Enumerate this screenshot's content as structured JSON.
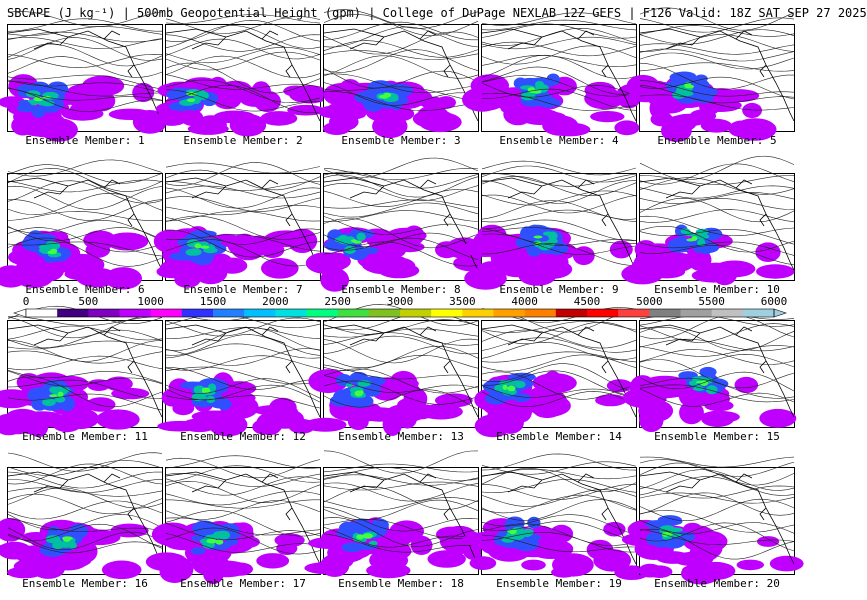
{
  "title": "SBCAPE (J kg⁻¹) | 500mb Geopotential Height (gpm) | College of DuPage NEXLAB 12Z GEFS | F126 Valid: 18Z SAT SEP 27 2025",
  "member_label_prefix": "Ensemble Member: ",
  "members": [
    {
      "label": "Ensemble Member: 1"
    },
    {
      "label": "Ensemble Member: 2"
    },
    {
      "label": "Ensemble Member: 3"
    },
    {
      "label": "Ensemble Member: 4"
    },
    {
      "label": "Ensemble Member: 5"
    },
    {
      "label": "Ensemble Member: 6"
    },
    {
      "label": "Ensemble Member: 7"
    },
    {
      "label": "Ensemble Member: 8"
    },
    {
      "label": "Ensemble Member: 9"
    },
    {
      "label": "Ensemble Member: 10"
    },
    {
      "label": "Ensemble Member: 11"
    },
    {
      "label": "Ensemble Member: 12"
    },
    {
      "label": "Ensemble Member: 13"
    },
    {
      "label": "Ensemble Member: 14"
    },
    {
      "label": "Ensemble Member: 15"
    },
    {
      "label": "Ensemble Member: 16"
    },
    {
      "label": "Ensemble Member: 17"
    },
    {
      "label": "Ensemble Member: 18"
    },
    {
      "label": "Ensemble Member: 19"
    },
    {
      "label": "Ensemble Member: 20"
    }
  ],
  "colorbar": {
    "min": 0,
    "max": 6000,
    "ticks": [
      "0",
      "500",
      "1000",
      "1500",
      "2000",
      "2500",
      "3000",
      "3500",
      "4000",
      "4500",
      "5000",
      "5500",
      "6000"
    ],
    "colors": [
      "#ffffff",
      "#40007f",
      "#7f00bf",
      "#c000ff",
      "#ff00ff",
      "#3030ff",
      "#2080ff",
      "#00c0ff",
      "#00e0e0",
      "#00ff80",
      "#40e040",
      "#80c020",
      "#c0d000",
      "#ffff00",
      "#ffd000",
      "#ffa000",
      "#ff8000",
      "#c00000",
      "#ff0000",
      "#ff4040",
      "#808080",
      "#a0a0a0",
      "#c0c0c0",
      "#a0d0e0"
    ]
  },
  "map_colors": {
    "cape_low": "#c000ff",
    "cape_mid": "#3050ff",
    "cape_high": "#00c0a0",
    "cape_peak": "#40ff40",
    "contour": "#222222",
    "coast": "#000000"
  }
}
